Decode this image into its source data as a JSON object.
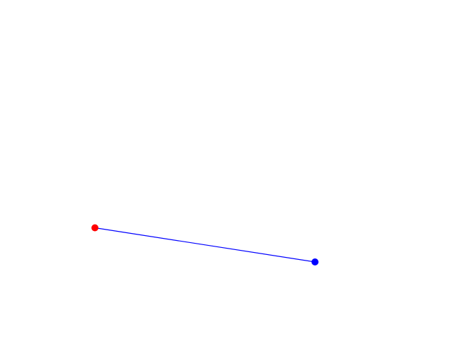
{
  "background": "#ffffff",
  "segment": {
    "line_color": "#0000ff",
    "start_point_color": "#ff0000",
    "end_point_color": "#0000ff"
  }
}
